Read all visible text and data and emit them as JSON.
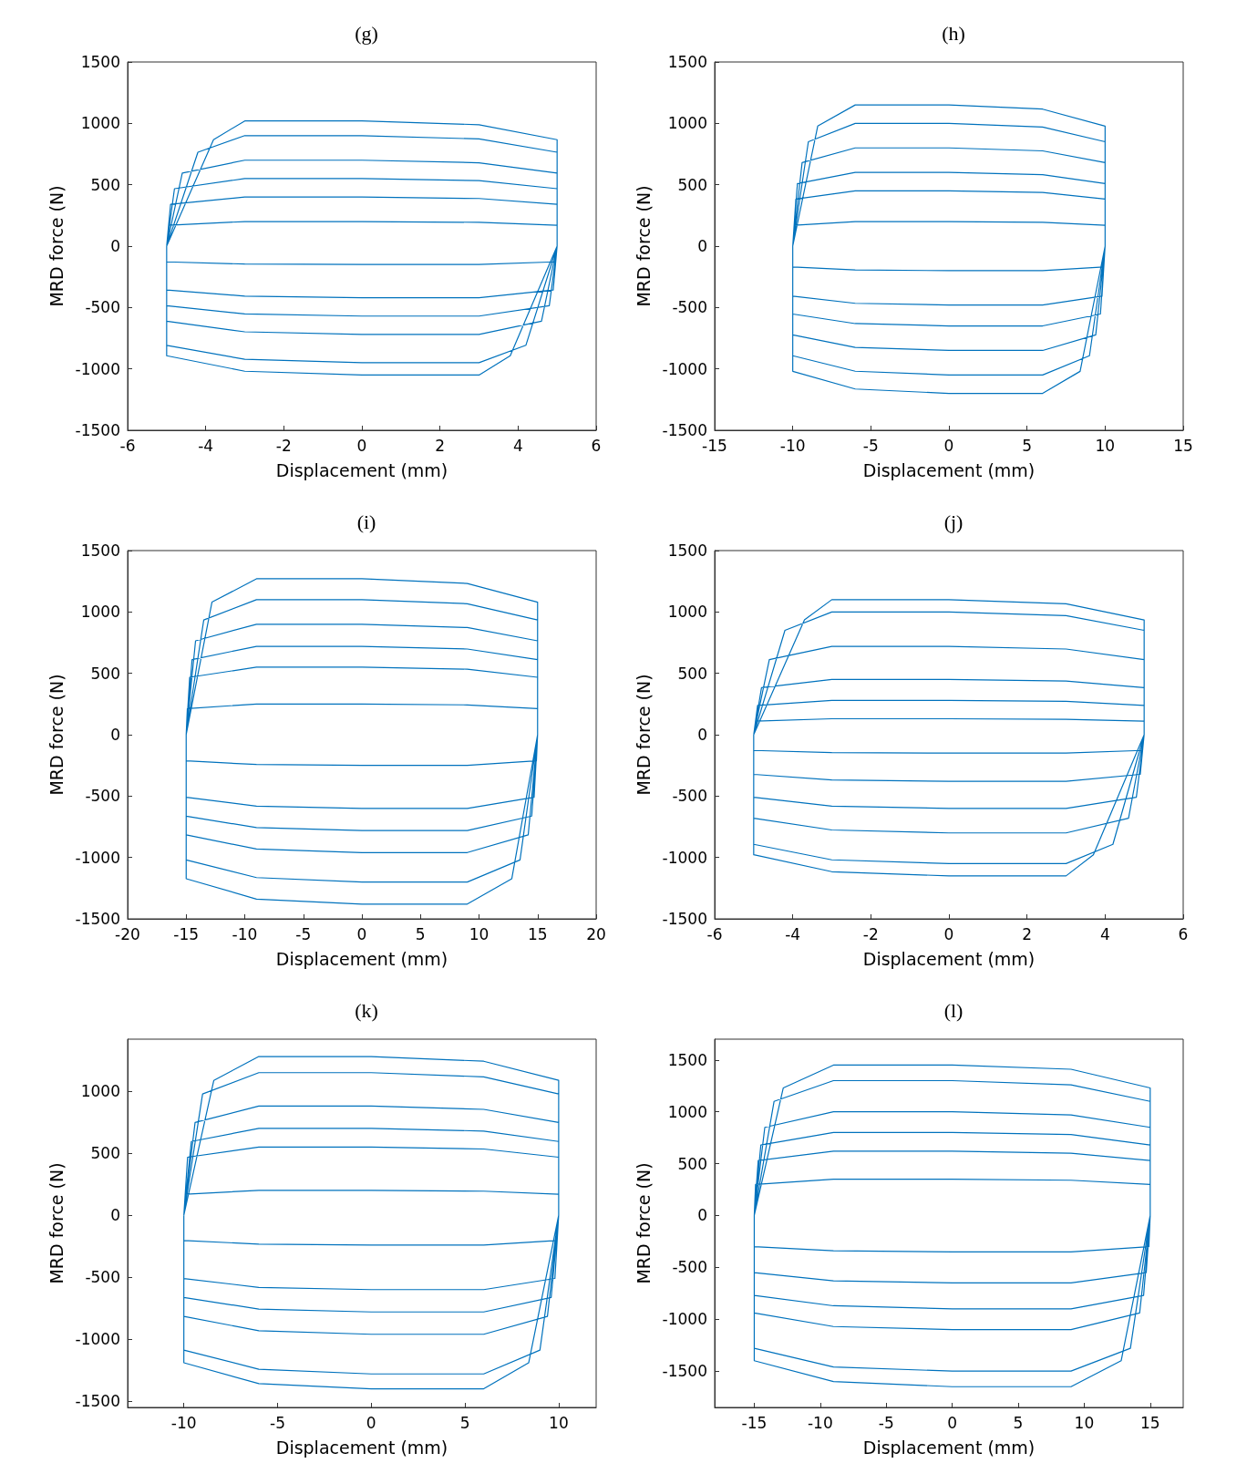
{
  "chart_data": [
    {
      "type": "line",
      "title": "(g)",
      "xlabel": "Displacement (mm)",
      "ylabel": "MRD force (N)",
      "xlim": [
        -6,
        6
      ],
      "ylim": [
        -1500,
        1500
      ],
      "xticks": [
        -6,
        -4,
        -2,
        0,
        2,
        4,
        6
      ],
      "yticks": [
        -1500,
        -1000,
        -500,
        0,
        500,
        1000,
        1500
      ],
      "series": [
        {
          "color": "#0072bd",
          "x": [
            -5,
            -3.8,
            -3,
            0,
            3,
            5,
            5,
            null,
            -5,
            -5,
            -3,
            0,
            3,
            3.8,
            5,
            null,
            -5,
            -4.2,
            -3,
            0,
            3,
            5,
            5,
            null,
            -5,
            -5,
            -3,
            0,
            3,
            4.2,
            5,
            null,
            -5,
            -4.6,
            -3,
            0,
            3,
            5,
            5,
            null,
            -5,
            -5,
            -3,
            0,
            3,
            4.6,
            5,
            null,
            -5,
            -4.8,
            -3,
            0,
            3,
            5,
            5,
            null,
            -5,
            -5,
            -3,
            0,
            3,
            4.8,
            5,
            null,
            -5,
            -4.9,
            -3,
            0,
            3,
            5,
            5,
            null,
            -5,
            -5,
            -3,
            0,
            3,
            4.9,
            5,
            null,
            -5,
            -4.95,
            -3,
            0,
            3,
            5,
            5,
            null,
            -5,
            -5,
            -3,
            0,
            3,
            4.95,
            5
          ],
          "values": [
            0,
            867,
            1020,
            1020,
            989,
            867,
            0,
            null,
            0,
            -893,
            -1019,
            -1050,
            -1050,
            -893,
            0,
            null,
            0,
            765,
            900,
            900,
            873,
            765,
            0,
            null,
            0,
            -808,
            -922,
            -950,
            -950,
            -808,
            0,
            null,
            0,
            595,
            700,
            700,
            679,
            595,
            0,
            null,
            0,
            -612,
            -698,
            -720,
            -720,
            -612,
            0,
            null,
            0,
            468,
            550,
            550,
            534,
            468,
            0,
            null,
            0,
            -485,
            -553,
            -570,
            -570,
            -485,
            0,
            null,
            0,
            340,
            400,
            400,
            388,
            340,
            0,
            null,
            0,
            -357,
            -407,
            -420,
            -420,
            -357,
            0,
            null,
            0,
            170,
            200,
            200,
            194,
            170,
            0,
            null,
            0,
            -128,
            -146,
            -150,
            -150,
            -128,
            0
          ]
        }
      ]
    },
    {
      "type": "line",
      "title": "(h)",
      "xlabel": "Displacement (mm)",
      "ylabel": "MRD force (N)",
      "xlim": [
        -15,
        15
      ],
      "ylim": [
        -1500,
        1500
      ],
      "xticks": [
        -15,
        -10,
        -5,
        0,
        5,
        10,
        15
      ],
      "yticks": [
        -1500,
        -1000,
        -500,
        0,
        500,
        1000,
        1500
      ],
      "series": [
        {
          "color": "#0072bd",
          "x": [
            -10,
            -8.4,
            -6,
            0,
            6,
            10,
            10,
            null,
            -10,
            -10,
            -6,
            0,
            6,
            8.4,
            10,
            null,
            -10,
            -9,
            -6,
            0,
            6,
            10,
            10,
            null,
            -10,
            -10,
            -6,
            0,
            6,
            9,
            10,
            null,
            -10,
            -9.4,
            -6,
            0,
            6,
            10,
            10,
            null,
            -10,
            -10,
            -6,
            0,
            6,
            9.4,
            10,
            null,
            -10,
            -9.7,
            -6,
            0,
            6,
            10,
            10,
            null,
            -10,
            -10,
            -6,
            0,
            6,
            9.7,
            10,
            null,
            -10,
            -9.8,
            -6,
            0,
            6,
            10,
            10,
            null,
            -10,
            -10,
            -6,
            0,
            6,
            9.8,
            10,
            null,
            -10,
            -9.9,
            -6,
            0,
            6,
            10,
            10,
            null,
            -10,
            -10,
            -6,
            0,
            6,
            9.9,
            10
          ],
          "values": [
            0,
            978,
            1150,
            1150,
            1116,
            978,
            0,
            null,
            0,
            -1020,
            -1164,
            -1200,
            -1200,
            -1020,
            0,
            null,
            0,
            850,
            1000,
            1000,
            970,
            850,
            0,
            null,
            0,
            -893,
            -1019,
            -1050,
            -1050,
            -893,
            0,
            null,
            0,
            680,
            800,
            800,
            776,
            680,
            0,
            null,
            0,
            -723,
            -825,
            -850,
            -850,
            -723,
            0,
            null,
            0,
            510,
            600,
            600,
            582,
            510,
            0,
            null,
            0,
            -553,
            -631,
            -650,
            -650,
            -553,
            0,
            null,
            0,
            383,
            450,
            450,
            437,
            383,
            0,
            null,
            0,
            -408,
            -466,
            -480,
            -480,
            -408,
            0,
            null,
            0,
            170,
            200,
            200,
            194,
            170,
            0,
            null,
            0,
            -170,
            -194,
            -200,
            -200,
            -170,
            0
          ]
        }
      ]
    },
    {
      "type": "line",
      "title": "(i)",
      "xlabel": "Displacement (mm)",
      "ylabel": "MRD force (N)",
      "xlim": [
        -20,
        20
      ],
      "ylim": [
        -1500,
        1500
      ],
      "xticks": [
        -20,
        -15,
        -10,
        -5,
        0,
        5,
        10,
        15,
        20
      ],
      "yticks": [
        -1500,
        -1000,
        -500,
        0,
        500,
        1000,
        1500
      ],
      "series": [
        {
          "color": "#0072bd",
          "x": [
            -15,
            -12.8,
            -9,
            0,
            9,
            15,
            15,
            null,
            -15,
            -15,
            -9,
            0,
            9,
            12.8,
            15,
            null,
            -15,
            -13.5,
            -9,
            0,
            9,
            15,
            15,
            null,
            -15,
            -15,
            -9,
            0,
            9,
            13.5,
            15,
            null,
            -15,
            -14.2,
            -9,
            0,
            9,
            15,
            15,
            null,
            -15,
            -15,
            -9,
            0,
            9,
            14.2,
            15,
            null,
            -15,
            -14.5,
            -9,
            0,
            9,
            15,
            15,
            null,
            -15,
            -15,
            -9,
            0,
            9,
            14.5,
            15,
            null,
            -15,
            -14.7,
            -9,
            0,
            9,
            15,
            15,
            null,
            -15,
            -15,
            -9,
            0,
            9,
            14.7,
            15,
            null,
            -15,
            -14.9,
            -9,
            0,
            9,
            15,
            15,
            null,
            -15,
            -15,
            -9,
            0,
            9,
            14.9,
            15
          ],
          "values": [
            0,
            1080,
            1270,
            1270,
            1232,
            1080,
            0,
            null,
            0,
            -1173,
            -1339,
            -1380,
            -1380,
            -1173,
            0,
            null,
            0,
            935,
            1100,
            1100,
            1067,
            935,
            0,
            null,
            0,
            -1020,
            -1164,
            -1200,
            -1200,
            -1020,
            0,
            null,
            0,
            765,
            900,
            900,
            873,
            765,
            0,
            null,
            0,
            -816,
            -931,
            -960,
            -960,
            -816,
            0,
            null,
            0,
            612,
            720,
            720,
            698,
            612,
            0,
            null,
            0,
            -663,
            -757,
            -780,
            -780,
            -663,
            0,
            null,
            0,
            468,
            550,
            550,
            534,
            468,
            0,
            null,
            0,
            -510,
            -582,
            -600,
            -600,
            -510,
            0,
            null,
            0,
            213,
            250,
            250,
            243,
            213,
            0,
            null,
            0,
            -213,
            -243,
            -250,
            -250,
            -213,
            0
          ]
        }
      ]
    },
    {
      "type": "line",
      "title": "(j)",
      "xlabel": "Displacement (mm)",
      "ylabel": "MRD force (N)",
      "xlim": [
        -6,
        6
      ],
      "ylim": [
        -1500,
        1500
      ],
      "xticks": [
        -6,
        -4,
        -2,
        0,
        2,
        4,
        6
      ],
      "yticks": [
        -1500,
        -1000,
        -500,
        0,
        500,
        1000,
        1500
      ],
      "series": [
        {
          "color": "#0072bd",
          "x": [
            -5,
            -3.7,
            -3,
            0,
            3,
            5,
            5,
            null,
            -5,
            -5,
            -3,
            0,
            3,
            3.7,
            5,
            null,
            -5,
            -4.2,
            -3,
            0,
            3,
            5,
            5,
            null,
            -5,
            -5,
            -3,
            0,
            3,
            4.2,
            5,
            null,
            -5,
            -4.6,
            -3,
            0,
            3,
            5,
            5,
            null,
            -5,
            -5,
            -3,
            0,
            3,
            4.6,
            5,
            null,
            -5,
            -4.8,
            -3,
            0,
            3,
            5,
            5,
            null,
            -5,
            -5,
            -3,
            0,
            3,
            4.8,
            5,
            null,
            -5,
            -4.9,
            -3,
            0,
            3,
            5,
            5,
            null,
            -5,
            -5,
            -3,
            0,
            3,
            4.9,
            5,
            null,
            -5,
            -4.95,
            -3,
            0,
            3,
            5,
            5,
            null,
            -5,
            -5,
            -3,
            0,
            3,
            4.95,
            5
          ],
          "values": [
            0,
            935,
            1100,
            1100,
            1067,
            935,
            0,
            null,
            0,
            -978,
            -1116,
            -1150,
            -1150,
            -978,
            0,
            null,
            0,
            850,
            1000,
            1000,
            970,
            850,
            0,
            null,
            0,
            -893,
            -1019,
            -1050,
            -1050,
            -893,
            0,
            null,
            0,
            612,
            720,
            720,
            698,
            612,
            0,
            null,
            0,
            -680,
            -776,
            -800,
            -800,
            -680,
            0,
            null,
            0,
            383,
            450,
            450,
            437,
            383,
            0,
            null,
            0,
            -510,
            -582,
            -600,
            -600,
            -510,
            0,
            null,
            0,
            238,
            280,
            280,
            272,
            238,
            0,
            null,
            0,
            -323,
            -369,
            -380,
            -380,
            -323,
            0,
            null,
            0,
            111,
            130,
            130,
            126,
            111,
            0,
            null,
            0,
            -128,
            -146,
            -150,
            -150,
            -128,
            0
          ]
        }
      ]
    },
    {
      "type": "line",
      "title": "(k)",
      "xlabel": "Displacement (mm)",
      "ylabel": "MRD force (N)",
      "xlim": [
        -13,
        12
      ],
      "ylim": [
        -1550,
        1420
      ],
      "xticks": [
        -10,
        -5,
        0,
        5,
        10
      ],
      "yticks": [
        -1500,
        -1000,
        -500,
        0,
        500,
        1000
      ],
      "series": [
        {
          "color": "#0072bd",
          "x": [
            -10,
            -8.4,
            -6,
            0,
            6,
            10,
            10,
            null,
            -10,
            -10,
            -6,
            0,
            6,
            8.4,
            10,
            null,
            -10,
            -9,
            -6,
            0,
            6,
            10,
            10,
            null,
            -10,
            -10,
            -6,
            0,
            6,
            9,
            10,
            null,
            -10,
            -9.4,
            -6,
            0,
            6,
            10,
            10,
            null,
            -10,
            -10,
            -6,
            0,
            6,
            9.4,
            10,
            null,
            -10,
            -9.6,
            -6,
            0,
            6,
            10,
            10,
            null,
            -10,
            -10,
            -6,
            0,
            6,
            9.6,
            10,
            null,
            -10,
            -9.8,
            -6,
            0,
            6,
            10,
            10,
            null,
            -10,
            -10,
            -6,
            0,
            6,
            9.8,
            10,
            null,
            -10,
            -9.9,
            -6,
            0,
            6,
            10,
            10,
            null,
            -10,
            -10,
            -6,
            0,
            6,
            9.9,
            10
          ],
          "values": [
            0,
            1088,
            1280,
            1280,
            1242,
            1088,
            0,
            null,
            0,
            -1190,
            -1358,
            -1400,
            -1400,
            -1190,
            0,
            null,
            0,
            978,
            1150,
            1150,
            1116,
            978,
            0,
            null,
            0,
            -1088,
            -1242,
            -1280,
            -1280,
            -1088,
            0,
            null,
            0,
            748,
            880,
            880,
            854,
            748,
            0,
            null,
            0,
            -816,
            -931,
            -960,
            -960,
            -816,
            0,
            null,
            0,
            595,
            700,
            700,
            679,
            595,
            0,
            null,
            0,
            -663,
            -757,
            -780,
            -780,
            -663,
            0,
            null,
            0,
            468,
            550,
            550,
            534,
            468,
            0,
            null,
            0,
            -510,
            -582,
            -600,
            -600,
            -510,
            0,
            null,
            0,
            170,
            200,
            200,
            194,
            170,
            0,
            null,
            0,
            -204,
            -233,
            -240,
            -240,
            -204,
            0
          ]
        }
      ]
    },
    {
      "type": "line",
      "title": "(l)",
      "xlabel": "Displacement (mm)",
      "ylabel": "MRD force (N)",
      "xlim": [
        -18,
        17.5
      ],
      "ylim": [
        -1850,
        1700
      ],
      "xticks": [
        -15,
        -10,
        -5,
        0,
        5,
        10,
        15
      ],
      "yticks": [
        -1500,
        -1000,
        -500,
        0,
        500,
        1000,
        1500
      ],
      "series": [
        {
          "color": "#0072bd",
          "x": [
            -15,
            -12.8,
            -9,
            0,
            9,
            15,
            15,
            null,
            -15,
            -15,
            -9,
            0,
            9,
            12.8,
            15,
            null,
            -15,
            -13.5,
            -9,
            0,
            9,
            15,
            15,
            null,
            -15,
            -15,
            -9,
            0,
            9,
            13.5,
            15,
            null,
            -15,
            -14.2,
            -9,
            0,
            9,
            15,
            15,
            null,
            -15,
            -15,
            -9,
            0,
            9,
            14.2,
            15,
            null,
            -15,
            -14.5,
            -9,
            0,
            9,
            15,
            15,
            null,
            -15,
            -15,
            -9,
            0,
            9,
            14.5,
            15,
            null,
            -15,
            -14.7,
            -9,
            0,
            9,
            15,
            15,
            null,
            -15,
            -15,
            -9,
            0,
            9,
            14.7,
            15,
            null,
            -15,
            -14.9,
            -9,
            0,
            9,
            15,
            15,
            null,
            -15,
            -15,
            -9,
            0,
            9,
            14.9,
            15
          ],
          "values": [
            0,
            1230,
            1450,
            1450,
            1410,
            1230,
            0,
            null,
            0,
            -1400,
            -1600,
            -1650,
            -1650,
            -1400,
            0,
            null,
            0,
            1100,
            1300,
            1300,
            1260,
            1100,
            0,
            null,
            0,
            -1280,
            -1460,
            -1500,
            -1500,
            -1280,
            0,
            null,
            0,
            850,
            1000,
            1000,
            970,
            850,
            0,
            null,
            0,
            -940,
            -1070,
            -1100,
            -1100,
            -940,
            0,
            null,
            0,
            680,
            800,
            800,
            780,
            680,
            0,
            null,
            0,
            -770,
            -870,
            -900,
            -900,
            -770,
            0,
            null,
            0,
            530,
            620,
            620,
            600,
            530,
            0,
            null,
            0,
            -550,
            -630,
            -650,
            -650,
            -550,
            0,
            null,
            0,
            300,
            350,
            350,
            340,
            300,
            0,
            null,
            0,
            -300,
            -340,
            -350,
            -350,
            -300,
            0
          ]
        }
      ]
    }
  ]
}
